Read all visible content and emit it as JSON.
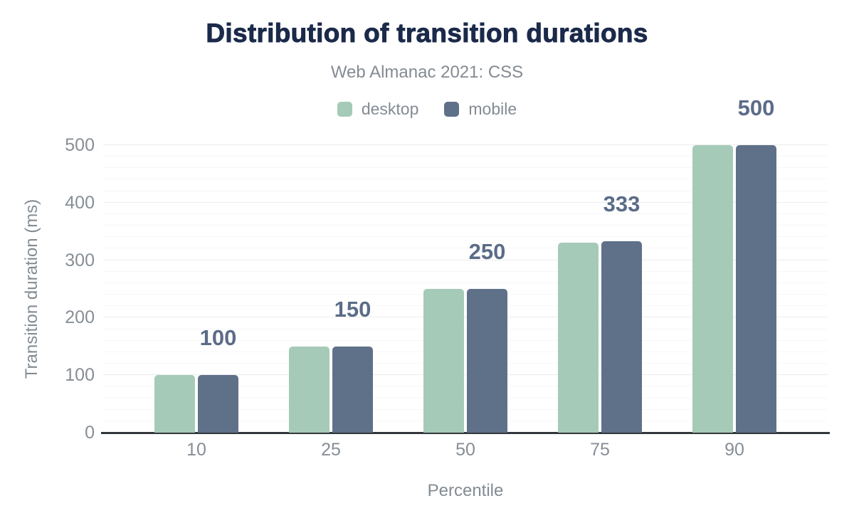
{
  "header": {
    "title": "Distribution of transition durations",
    "subtitle": "Web Almanac 2021: CSS"
  },
  "legend": [
    {
      "label": "desktop",
      "color": "#a6cab8"
    },
    {
      "label": "mobile",
      "color": "#5f7089"
    }
  ],
  "chart_data": {
    "type": "bar",
    "title": "Distribution of transition durations",
    "subtitle": "Web Almanac 2021: CSS",
    "categories": [
      "10",
      "25",
      "50",
      "75",
      "90"
    ],
    "series": [
      {
        "name": "desktop",
        "color": "#a6cab8",
        "values": [
          100,
          150,
          250,
          330,
          500
        ]
      },
      {
        "name": "mobile",
        "color": "#5f7089",
        "values": [
          100,
          150,
          250,
          333,
          500
        ]
      }
    ],
    "data_labels": {
      "series": "mobile",
      "values": [
        "100",
        "150",
        "250",
        "333",
        "500"
      ],
      "color": "#5b6c88"
    },
    "xlabel": "Percentile",
    "ylabel": "Transition duration (ms)",
    "ylim": [
      0,
      500
    ],
    "yticks": [
      "0",
      "100",
      "200",
      "300",
      "400",
      "500"
    ],
    "minor_grid_step": 20,
    "grid": true,
    "legend_position": "top",
    "axis_line_color": "#33373b",
    "major_grid_color": "#ececec",
    "minor_grid_color": "#f7f7f7"
  }
}
